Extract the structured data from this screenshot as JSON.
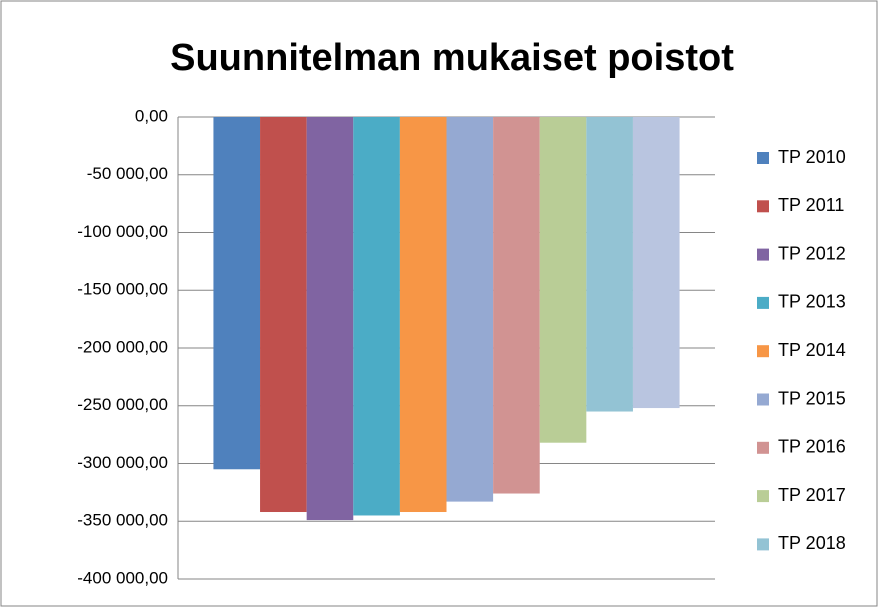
{
  "chart_data": {
    "type": "bar",
    "title": "Suunnitelman mukaiset poistot",
    "categories": [
      null
    ],
    "series": [
      {
        "name": "TP 2010",
        "color": "#4f81bd",
        "values": [
          -305000
        ]
      },
      {
        "name": "TP 2011",
        "color": "#c0504d",
        "values": [
          -342000
        ]
      },
      {
        "name": "TP 2012",
        "color": "#8064a2",
        "values": [
          -349000
        ]
      },
      {
        "name": "TP 2013",
        "color": "#4bacc6",
        "values": [
          -345000
        ]
      },
      {
        "name": "TP 2014",
        "color": "#f79646",
        "values": [
          -342000
        ]
      },
      {
        "name": "TP 2015",
        "color": "#95a9d2",
        "values": [
          -333000
        ]
      },
      {
        "name": "TP 2016",
        "color": "#d19392",
        "values": [
          -326000
        ]
      },
      {
        "name": "TP 2017",
        "color": "#b9cd96",
        "values": [
          -282000
        ]
      },
      {
        "name": "TP 2018",
        "color": "#93c3d4",
        "values": [
          -255000
        ]
      },
      {
        "name": null,
        "color": "#b9c5e0",
        "values": [
          -252000
        ]
      }
    ],
    "ylim": [
      -400000,
      0
    ],
    "yticks": [
      {
        "value": 0,
        "label": "0,00"
      },
      {
        "value": -50000,
        "label": "-50 000,00"
      },
      {
        "value": -100000,
        "label": "-100 000,00"
      },
      {
        "value": -150000,
        "label": "-150 000,00"
      },
      {
        "value": -200000,
        "label": "-200 000,00"
      },
      {
        "value": -250000,
        "label": "-250 000,00"
      },
      {
        "value": -300000,
        "label": "-300 000,00"
      },
      {
        "value": -350000,
        "label": "-350 000,00"
      },
      {
        "value": -400000,
        "label": "-400 000,00"
      }
    ],
    "grid": true,
    "legend": "right"
  }
}
